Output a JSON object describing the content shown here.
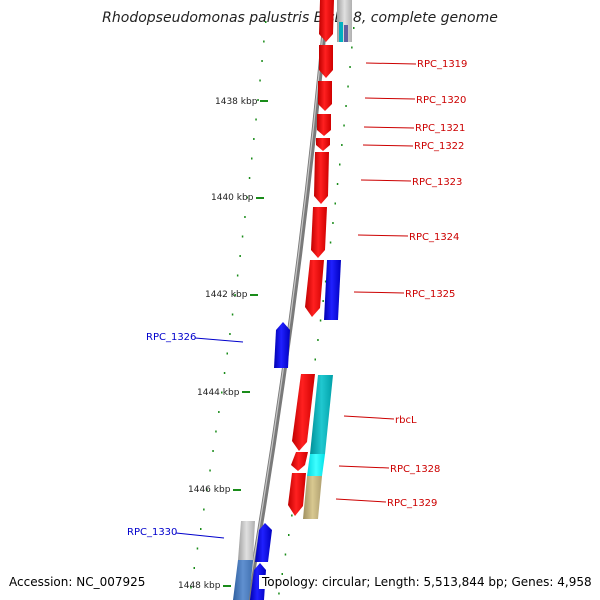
{
  "title": "Rhodopseudomonas palustris BisB18, complete genome",
  "footer": {
    "accession": "Accession: NC_007925",
    "stats": "Topology: circular; Length: 5,513,844 bp; Genes: 4,958"
  },
  "scale_labels": [
    "1438 kbp",
    "1440 kbp",
    "1442 kbp",
    "1444 kbp",
    "1446 kbp",
    "1448 kbp"
  ],
  "colors": {
    "forward_gene": "#ff0000",
    "reverse_gene": "#0000ff",
    "rna_like": "#00c0c8",
    "misc_feature": "#c8b878",
    "backbone": "#808080",
    "tick": "#1a8c1a",
    "forward_label": "#cc0000",
    "reverse_label": "#0000cc"
  },
  "forward_labels": [
    "RPC_1319",
    "RPC_1320",
    "RPC_1321",
    "RPC_1322",
    "RPC_1323",
    "RPC_1324",
    "RPC_1325",
    "rbcL",
    "RPC_1328",
    "RPC_1329"
  ],
  "reverse_labels": [
    "RPC_1326",
    "RPC_1330"
  ]
}
